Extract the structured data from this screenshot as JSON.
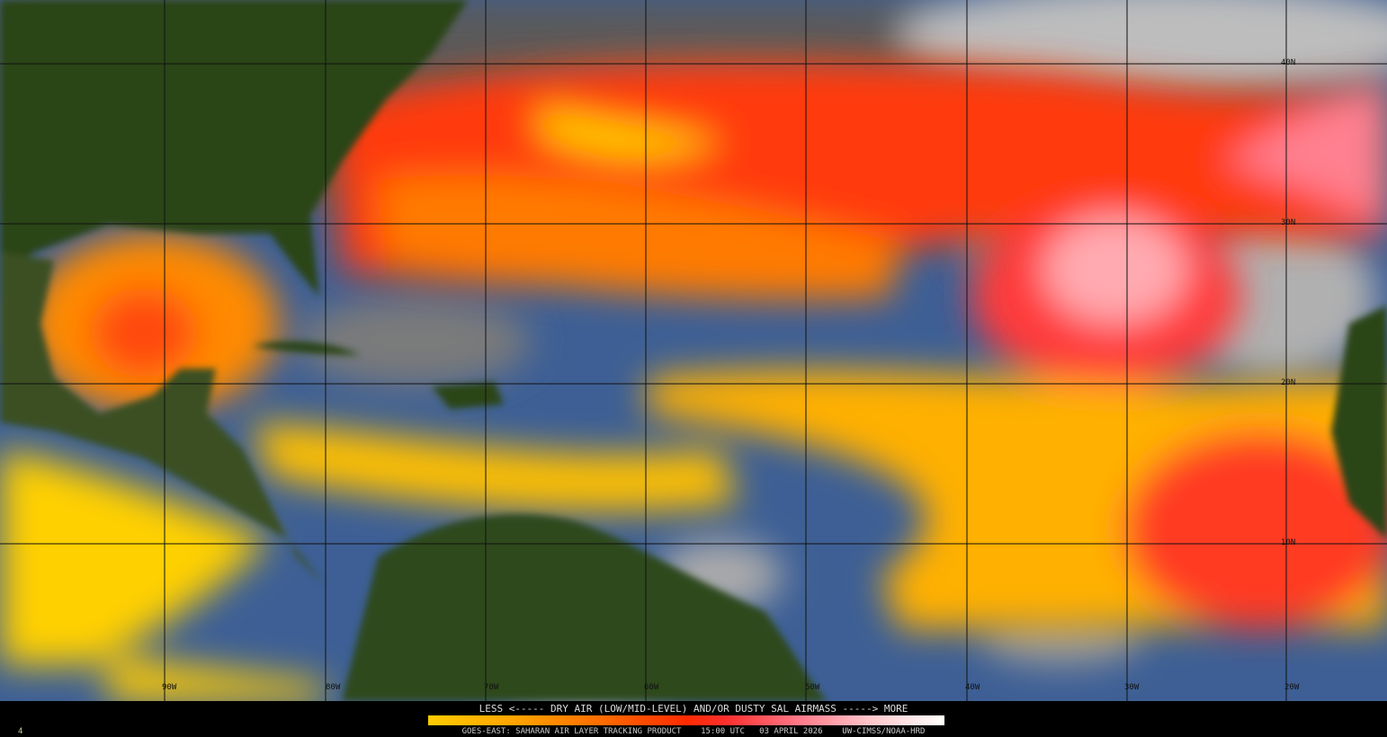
{
  "map": {
    "product": "GOES-EAST: SAHARAN AIR LAYER TRACKING PRODUCT",
    "time": "15:00 UTC",
    "date": "03 APRIL 2026",
    "credit": "UW-CIMSS/NOAA-HRD",
    "frame": "4",
    "legend_title": "LESS <----- DRY AIR (LOW/MID-LEVEL) AND/OR DUSTY SAL AIRMASS -----> MORE",
    "legend_colors": [
      "#ffcc00",
      "#ffa000",
      "#ff6a00",
      "#ff2a00",
      "#ff7a8a",
      "#ffc8cc",
      "#ffffff"
    ],
    "longitude_labels": [
      "90W",
      "80W",
      "70W",
      "60W",
      "50W",
      "40W",
      "30W",
      "20W"
    ],
    "latitude_labels": [
      "40N",
      "30N",
      "20N",
      "10N"
    ],
    "colors": {
      "ocean": "#3d5f95",
      "land": "#2c4418",
      "cloud": "#8a8a8a",
      "sal_low": "#ffd000",
      "sal_high": "#ff2a1a"
    }
  }
}
